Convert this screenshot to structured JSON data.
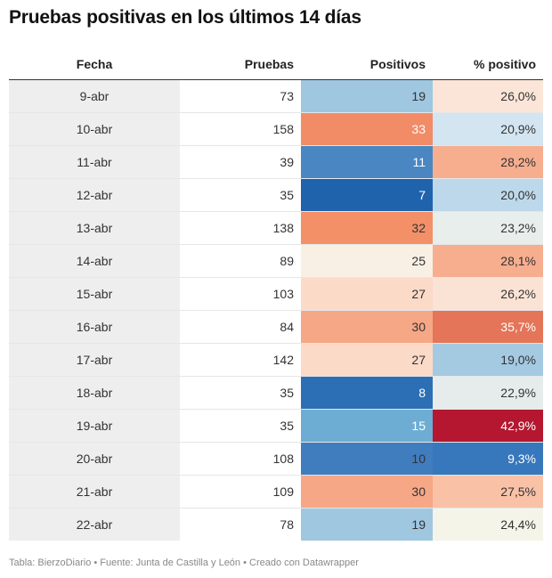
{
  "title": "Pruebas positivas en los últimos 14 días",
  "footer": "Tabla: BierzoDiario • Fuente: Junta de Castilla y León • Creado con Datawrapper",
  "chart_data": {
    "type": "table",
    "columns": [
      "Fecha",
      "Pruebas",
      "Positivos",
      "% positivo"
    ],
    "rows": [
      {
        "fecha": "9-abr",
        "pruebas": "73",
        "positivos": "19",
        "pct": "26,0%",
        "pos_color": "#9fc7e0",
        "pos_text": "#333333",
        "pct_color": "#fae5d8",
        "pct_text": "#333333"
      },
      {
        "fecha": "10-abr",
        "pruebas": "158",
        "positivos": "33",
        "pct": "20,9%",
        "pos_color": "#f28c67",
        "pos_text": "#ffffff",
        "pct_color": "#d2e5f0",
        "pct_text": "#333333"
      },
      {
        "fecha": "11-abr",
        "pruebas": "39",
        "positivos": "11",
        "pct": "28,2%",
        "pos_color": "#4a87c2",
        "pos_text": "#ffffff",
        "pct_color": "#f6ae8f",
        "pct_text": "#333333"
      },
      {
        "fecha": "12-abr",
        "pruebas": "35",
        "positivos": "7",
        "pct": "20,0%",
        "pos_color": "#1f63ad",
        "pos_text": "#ffffff",
        "pct_color": "#bdd8ea",
        "pct_text": "#333333"
      },
      {
        "fecha": "13-abr",
        "pruebas": "138",
        "positivos": "32",
        "pct": "23,2%",
        "pos_color": "#f39068",
        "pos_text": "#333333",
        "pct_color": "#e8eeec",
        "pct_text": "#333333"
      },
      {
        "fecha": "14-abr",
        "pruebas": "89",
        "positivos": "25",
        "pct": "28,1%",
        "pos_color": "#f8f0e5",
        "pos_text": "#333333",
        "pct_color": "#f6ae8f",
        "pct_text": "#333333"
      },
      {
        "fecha": "15-abr",
        "pruebas": "103",
        "positivos": "27",
        "pct": "26,2%",
        "pos_color": "#fcdac8",
        "pos_text": "#333333",
        "pct_color": "#fae3d5",
        "pct_text": "#333333"
      },
      {
        "fecha": "16-abr",
        "pruebas": "84",
        "positivos": "30",
        "pct": "35,7%",
        "pos_color": "#f6a785",
        "pos_text": "#333333",
        "pct_color": "#e47558",
        "pct_text": "#ffffff"
      },
      {
        "fecha": "17-abr",
        "pruebas": "142",
        "positivos": "27",
        "pct": "19,0%",
        "pos_color": "#fcdac8",
        "pos_text": "#333333",
        "pct_color": "#a4cae2",
        "pct_text": "#333333"
      },
      {
        "fecha": "18-abr",
        "pruebas": "35",
        "positivos": "8",
        "pct": "22,9%",
        "pos_color": "#2c6fb4",
        "pos_text": "#ffffff",
        "pct_color": "#e6ecec",
        "pct_text": "#333333"
      },
      {
        "fecha": "19-abr",
        "pruebas": "35",
        "positivos": "15",
        "pct": "42,9%",
        "pos_color": "#6eadd3",
        "pos_text": "#ffffff",
        "pct_color": "#b4172f",
        "pct_text": "#ffffff"
      },
      {
        "fecha": "20-abr",
        "pruebas": "108",
        "positivos": "10",
        "pct": "9,3%",
        "pos_color": "#3f7dbe",
        "pos_text": "#333333",
        "pct_color": "#3777bb",
        "pct_text": "#ffffff"
      },
      {
        "fecha": "21-abr",
        "pruebas": "109",
        "positivos": "30",
        "pct": "27,5%",
        "pos_color": "#f6a785",
        "pos_text": "#333333",
        "pct_color": "#f9c2a7",
        "pct_text": "#333333"
      },
      {
        "fecha": "22-abr",
        "pruebas": "78",
        "positivos": "19",
        "pct": "24,4%",
        "pos_color": "#9fc7e0",
        "pos_text": "#333333",
        "pct_color": "#f5f4e8",
        "pct_text": "#333333"
      }
    ]
  }
}
